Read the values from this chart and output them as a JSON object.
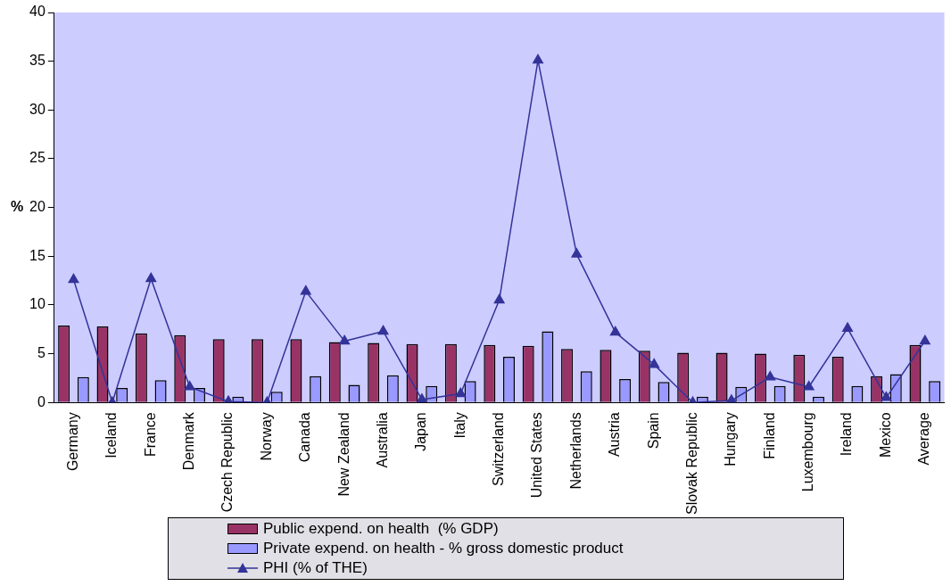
{
  "chart_data": {
    "type": "bar",
    "ylabel": "%",
    "categories": [
      "Germany",
      "Iceland",
      "France",
      "Denmark",
      "Czech Republic",
      "Norway",
      "Canada",
      "New Zealand",
      "Australia",
      "Japan",
      "Italy",
      "Switzerland",
      "United States",
      "Netherlands",
      "Austria",
      "Spain",
      "Slovak Republic",
      "Hungary",
      "Finland",
      "Luxembourg",
      "Ireland",
      "Mexico",
      "Average"
    ],
    "series": [
      {
        "name": "Public expend. on health  (% GDP)",
        "color": "#993366",
        "values": [
          7.9,
          7.8,
          7.1,
          6.9,
          6.5,
          6.5,
          6.5,
          6.2,
          6.1,
          6.0,
          6.0,
          5.9,
          5.8,
          5.5,
          5.4,
          5.3,
          5.1,
          5.1,
          5.0,
          4.9,
          4.7,
          2.7,
          5.9
        ]
      },
      {
        "name": "Private expend. on health - % gross domestic product",
        "color": "#9999ff",
        "values": [
          2.6,
          1.5,
          2.3,
          1.5,
          0.6,
          1.1,
          2.7,
          1.8,
          2.8,
          1.7,
          2.2,
          4.7,
          7.3,
          3.2,
          2.4,
          2.1,
          0.6,
          1.6,
          1.7,
          0.6,
          1.7,
          2.9,
          2.2
        ]
      },
      {
        "name": "PHI (% of THE)",
        "type": "line",
        "color": "#333399",
        "marker": "triangle",
        "values": [
          12.6,
          0,
          12.7,
          1.6,
          0.1,
          0,
          11.4,
          6.3,
          7.3,
          0.3,
          0.9,
          10.5,
          35.1,
          15.2,
          7.2,
          3.9,
          0,
          0.2,
          2.6,
          1.6,
          7.6,
          0.5,
          6.3
        ]
      }
    ],
    "ylim": [
      0,
      40
    ],
    "yticks": [
      0,
      5,
      10,
      15,
      20,
      25,
      30,
      35,
      40
    ],
    "grid": false,
    "legend": "bottom"
  }
}
